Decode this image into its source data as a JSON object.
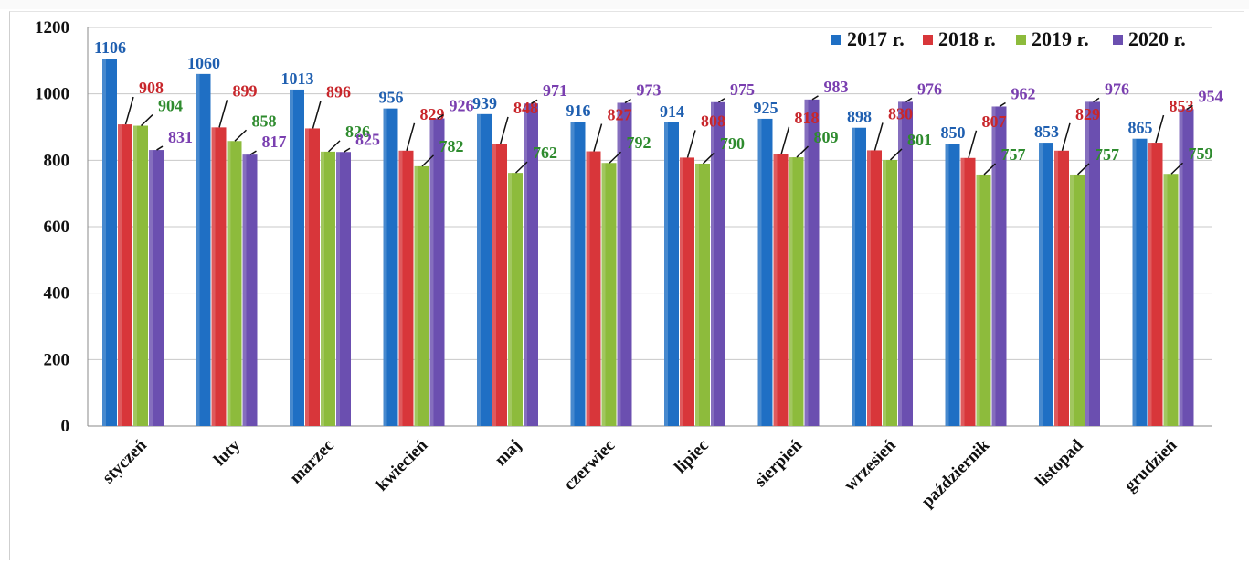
{
  "chart_data": {
    "type": "bar",
    "categories": [
      "styczeń",
      "luty",
      "marzec",
      "kwiecień",
      "maj",
      "czerwiec",
      "lipiec",
      "sierpień",
      "wrzesień",
      "październik",
      "listopad",
      "grudzień"
    ],
    "series": [
      {
        "name": "2017 r.",
        "color": "#1f6fc4",
        "values": [
          1106,
          1060,
          1013,
          956,
          939,
          916,
          914,
          925,
          898,
          850,
          853,
          865
        ]
      },
      {
        "name": "2018 r.",
        "color": "#d8363a",
        "values": [
          908,
          899,
          896,
          829,
          848,
          827,
          808,
          818,
          830,
          807,
          829,
          853
        ]
      },
      {
        "name": "2019 r.",
        "color": "#8dbb3c",
        "values": [
          904,
          858,
          826,
          782,
          762,
          792,
          790,
          809,
          801,
          757,
          757,
          759
        ]
      },
      {
        "name": "2020 r.",
        "color": "#6b4fb0",
        "values": [
          831,
          817,
          825,
          926,
          971,
          973,
          975,
          983,
          976,
          962,
          976,
          954
        ]
      }
    ],
    "label_colors": [
      "#1f5fb0",
      "#c8262b",
      "#2e8b2e",
      "#7a3fb0"
    ],
    "y_ticks": [
      "0",
      "200",
      "400",
      "600",
      "800",
      "1000",
      "1200"
    ],
    "ylim": [
      0,
      1200
    ],
    "grid": true,
    "legend_position": "top-right",
    "title": "",
    "xlabel": "",
    "ylabel": ""
  }
}
